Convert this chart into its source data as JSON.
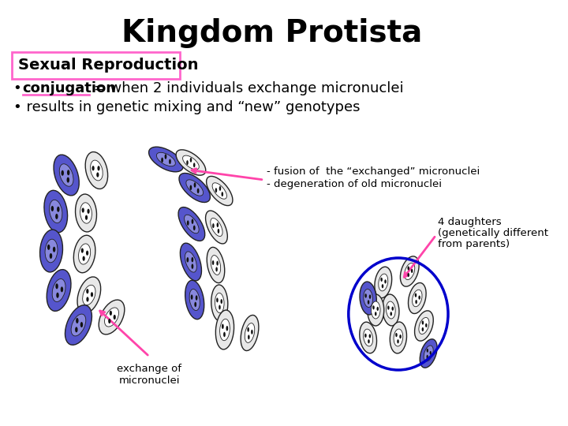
{
  "title": "Kingdom Protista",
  "subtitle_box_text": "Sexual Reproduction",
  "bullet1_prefix": "• ",
  "bullet1_underline": "conjugation",
  "bullet1_rest": " = when 2 individuals exchange micronuclei",
  "bullet2": "• results in genetic mixing and “new” genotypes",
  "annotation1_line1": "- fusion of  the “exchanged” micronuclei",
  "annotation1_line2": "- degeneration of old micronuclei",
  "annotation2_line1": "4 daughters",
  "annotation2_line2": "(genetically different",
  "annotation2_line3": "from parents)",
  "annotation3_line1": "exchange of",
  "annotation3_line2": "micronuclei",
  "bg_color": "#ffffff",
  "title_color": "#000000",
  "subtitle_box_color": "#ff66cc",
  "bullet_color": "#000000",
  "annotation_color": "#000000",
  "arrow_color": "#ff44aa",
  "blue_circle_color": "#0000cc",
  "cell_blue_fill": "#5555cc",
  "cell_outline": "#222222"
}
